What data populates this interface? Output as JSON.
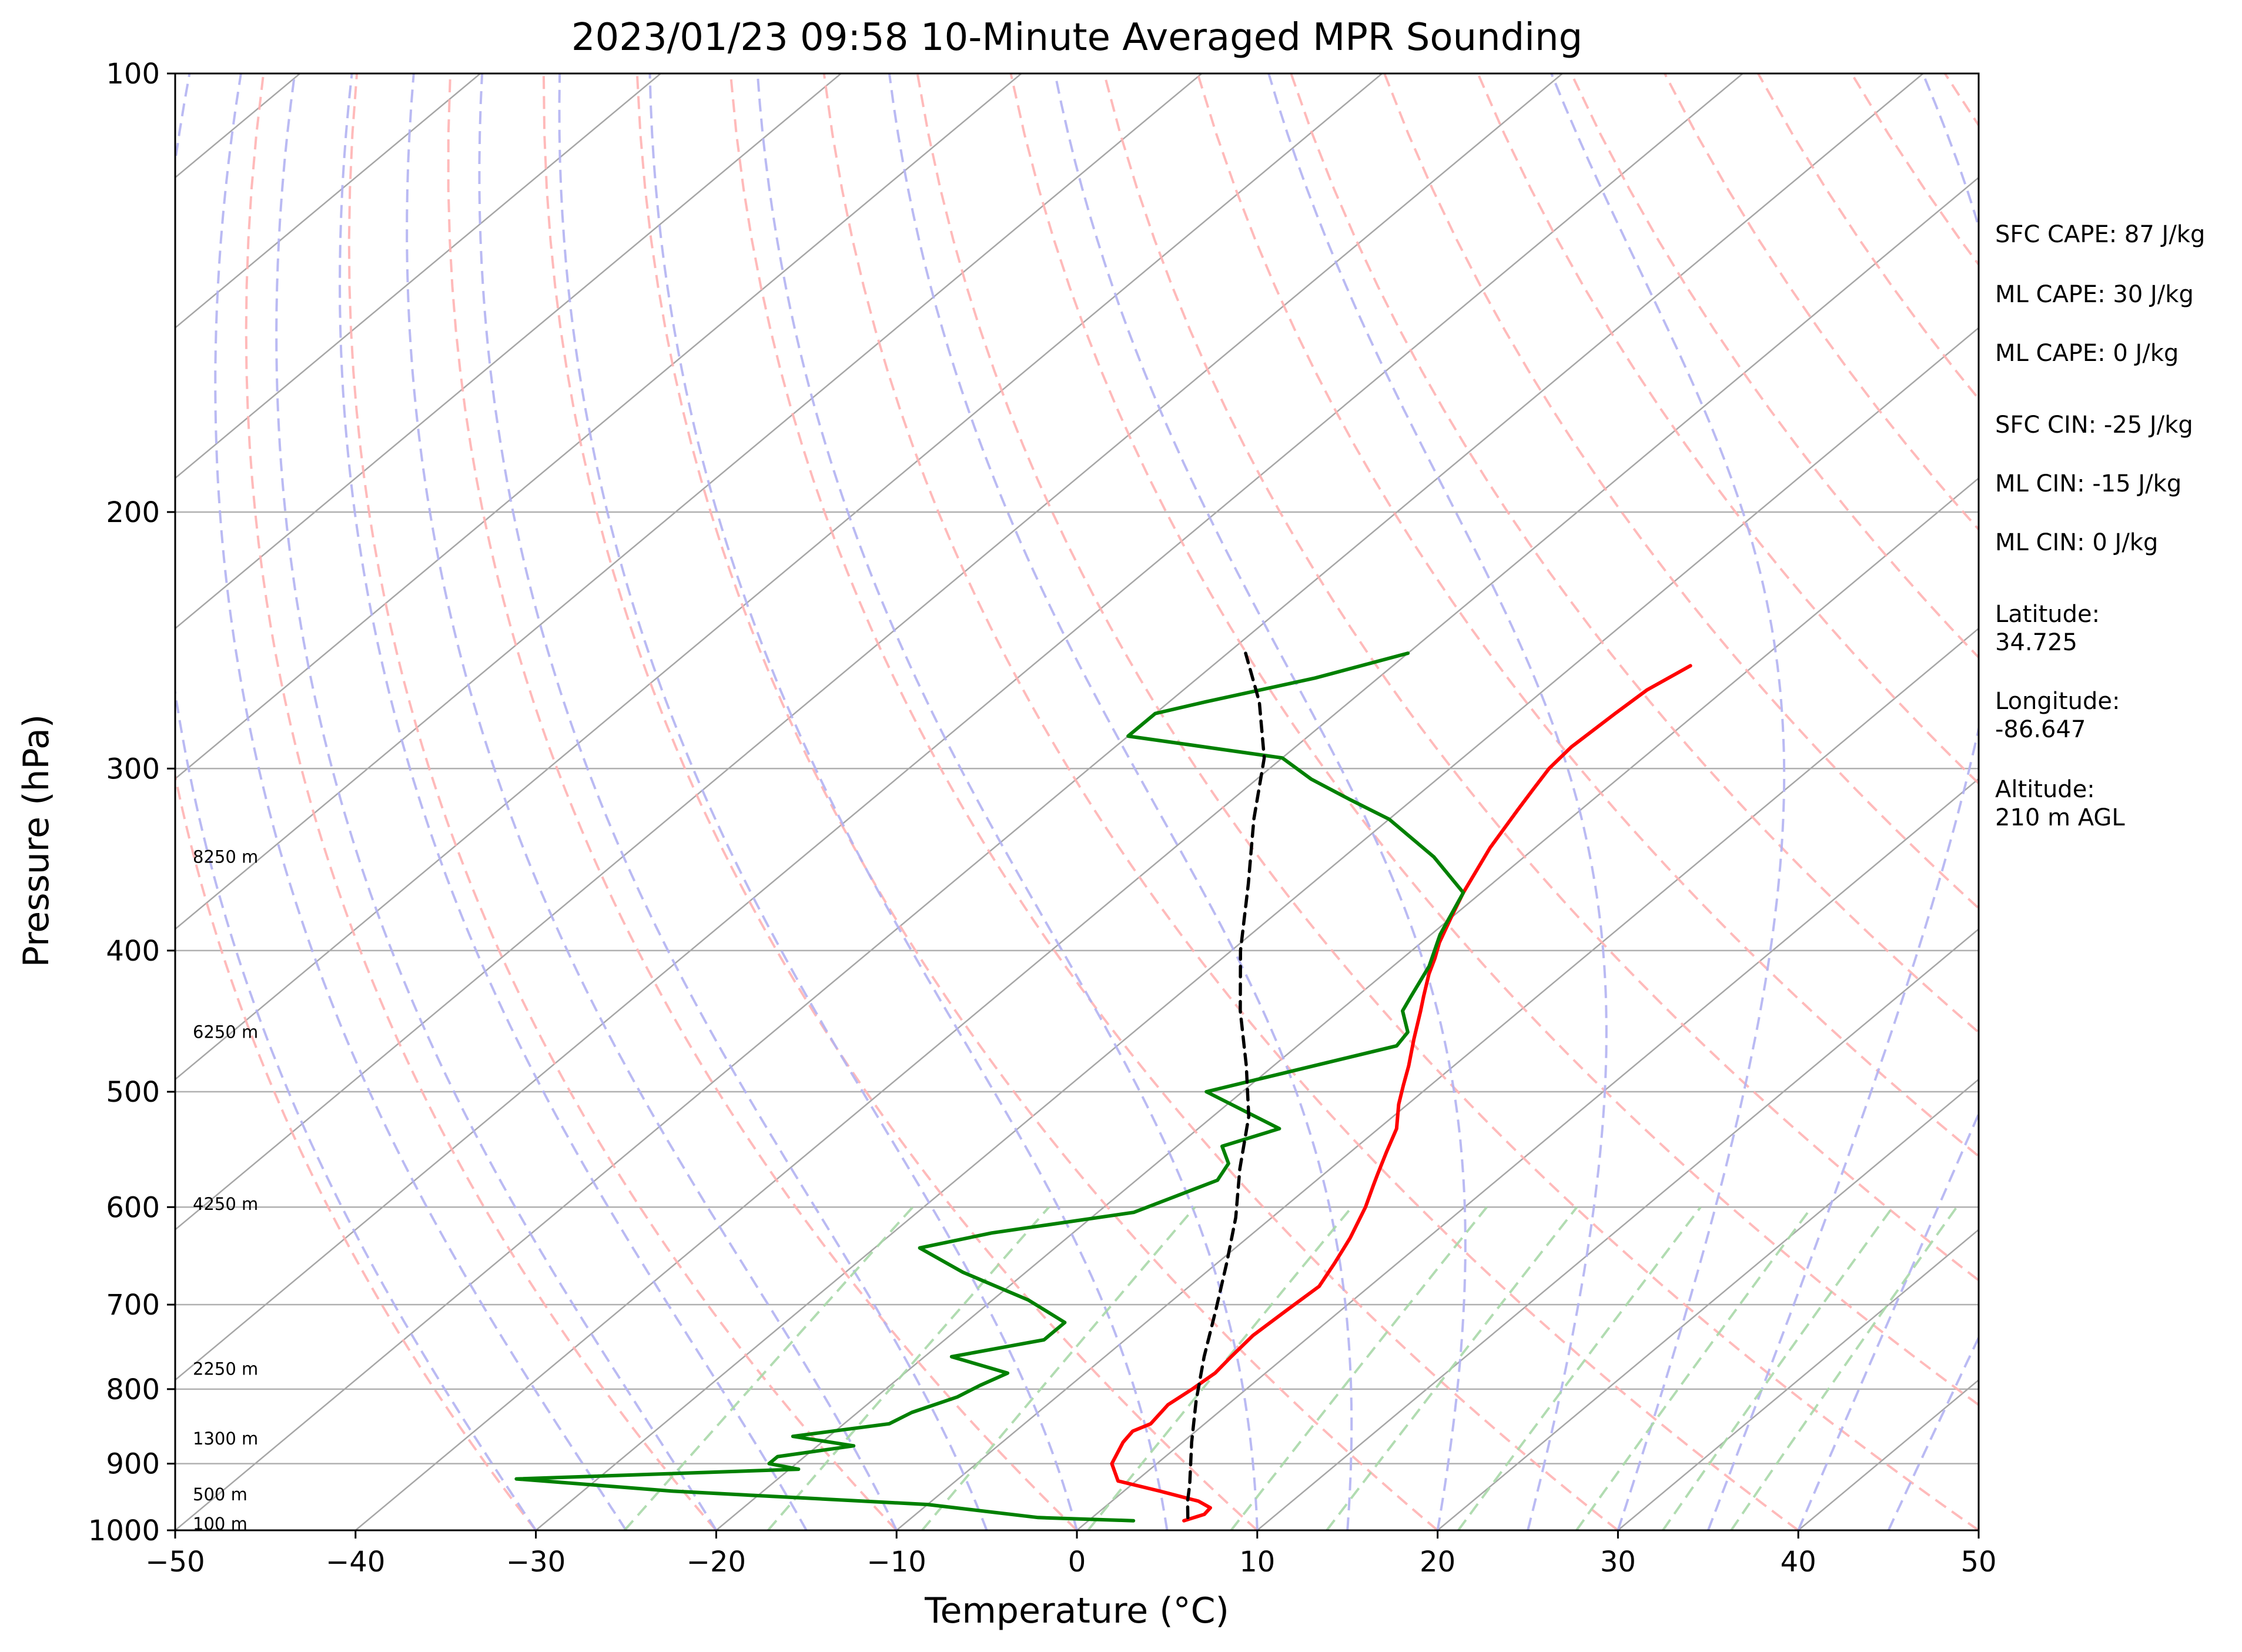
{
  "chart_data": {
    "type": "line",
    "title": "2023/01/23 09:58 10-Minute Averaged MPR Sounding",
    "xlabel": "Temperature (°C)",
    "ylabel": "Pressure (hPa)",
    "xlim": [
      -50,
      50
    ],
    "ylim": [
      1000,
      100
    ],
    "y_scale": "log",
    "x_ticks": [
      -50,
      -40,
      -30,
      -20,
      -10,
      0,
      10,
      20,
      30,
      40,
      50
    ],
    "x_tick_labels": [
      "−50",
      "−40",
      "−30",
      "−20",
      "−10",
      "0",
      "10",
      "20",
      "30",
      "40",
      "50"
    ],
    "y_ticks": [
      1000,
      900,
      800,
      700,
      600,
      500,
      400,
      300,
      200,
      100
    ],
    "y_tick_labels": [
      "1000",
      "900",
      "800",
      "700",
      "600",
      "500",
      "400",
      "300",
      "200",
      "100"
    ],
    "grid": true,
    "colors": {
      "temperature": "#ff0000",
      "dewpoint": "#008000",
      "parcel": "#000000",
      "isotherms": "#a6a6a6",
      "dry_adiabats": "#ffb3b3",
      "moist_adiabats": "#b3b3f2",
      "mixing_ratio": "#a8d8a8",
      "pressure_grid": "#b0b0b0"
    },
    "series": [
      {
        "role": "temperature",
        "points": [
          [
            5.3,
            985
          ],
          [
            6.0,
            975
          ],
          [
            5.9,
            965
          ],
          [
            4.8,
            955
          ],
          [
            2.0,
            940
          ],
          [
            -1.0,
            925
          ],
          [
            -2.5,
            900
          ],
          [
            -3.3,
            870
          ],
          [
            -3.5,
            855
          ],
          [
            -3.0,
            845
          ],
          [
            -3.3,
            820
          ],
          [
            -3.0,
            800
          ],
          [
            -2.8,
            780
          ],
          [
            -3.0,
            760
          ],
          [
            -3.2,
            735
          ],
          [
            -3.0,
            705
          ],
          [
            -2.8,
            680
          ],
          [
            -3.5,
            655
          ],
          [
            -4.3,
            630
          ],
          [
            -5.5,
            600
          ],
          [
            -6.5,
            580
          ],
          [
            -7.0,
            570
          ],
          [
            -8.0,
            550
          ],
          [
            -9.0,
            530
          ],
          [
            -10.5,
            510
          ],
          [
            -11.5,
            495
          ],
          [
            -12.5,
            480
          ],
          [
            -14.0,
            460
          ],
          [
            -15.5,
            440
          ],
          [
            -16.3,
            430
          ],
          [
            -17.5,
            415
          ],
          [
            -18.2,
            405
          ],
          [
            -19.0,
            395
          ],
          [
            -20.0,
            380
          ],
          [
            -21.0,
            365
          ],
          [
            -22.5,
            340
          ],
          [
            -23.5,
            320
          ],
          [
            -24.0,
            310
          ],
          [
            -24.5,
            300
          ],
          [
            -24.7,
            290
          ],
          [
            -24.5,
            275
          ],
          [
            -24.3,
            265
          ],
          [
            -23.5,
            255
          ]
        ]
      },
      {
        "role": "dewpoint",
        "points": [
          [
            2.5,
            985
          ],
          [
            -3.0,
            980
          ],
          [
            -10.0,
            960
          ],
          [
            -25.0,
            940
          ],
          [
            -34.5,
            922
          ],
          [
            -19.5,
            908
          ],
          [
            -21.5,
            900
          ],
          [
            -21.5,
            890
          ],
          [
            -18.0,
            875
          ],
          [
            -22.0,
            862
          ],
          [
            -17.5,
            845
          ],
          [
            -17.0,
            830
          ],
          [
            -15.5,
            810
          ],
          [
            -15.0,
            795
          ],
          [
            -14.3,
            780
          ],
          [
            -18.5,
            760
          ],
          [
            -14.5,
            740
          ],
          [
            -14.5,
            720
          ],
          [
            -18.0,
            695
          ],
          [
            -23.5,
            665
          ],
          [
            -27.5,
            640
          ],
          [
            -24.5,
            625
          ],
          [
            -18.0,
            605
          ],
          [
            -15.5,
            575
          ],
          [
            -16.0,
            560
          ],
          [
            -17.5,
            545
          ],
          [
            -15.5,
            530
          ],
          [
            -22.0,
            500
          ],
          [
            -14.5,
            465
          ],
          [
            -14.8,
            455
          ],
          [
            -16.5,
            440
          ],
          [
            -17.0,
            430
          ],
          [
            -18.0,
            410
          ],
          [
            -19.5,
            390
          ],
          [
            -21.0,
            365
          ],
          [
            -25.0,
            345
          ],
          [
            -30.0,
            325
          ],
          [
            -33.5,
            315
          ],
          [
            -37.0,
            305
          ],
          [
            -40.0,
            295
          ],
          [
            -50.0,
            285
          ],
          [
            -50.0,
            275
          ],
          [
            -48.0,
            270
          ],
          [
            -43.5,
            260
          ],
          [
            -40.0,
            250
          ]
        ]
      },
      {
        "role": "parcel",
        "points": [
          [
            5.3,
            980
          ],
          [
            4.2,
            955
          ],
          [
            3.2,
            930
          ],
          [
            0.5,
            870
          ],
          [
            -2.0,
            815
          ],
          [
            -4.5,
            760
          ],
          [
            -7.0,
            705
          ],
          [
            -9.5,
            655
          ],
          [
            -12.0,
            610
          ],
          [
            -15.0,
            565
          ],
          [
            -18.0,
            520
          ],
          [
            -21.5,
            480
          ],
          [
            -25.5,
            440
          ],
          [
            -29.5,
            400
          ],
          [
            -33.5,
            360
          ],
          [
            -37.5,
            325
          ],
          [
            -41.0,
            295
          ],
          [
            -45.0,
            270
          ],
          [
            -49.0,
            250
          ]
        ]
      }
    ],
    "height_labels": [
      {
        "text": "100 m",
        "p": 990
      },
      {
        "text": "500 m",
        "p": 945
      },
      {
        "text": "1300 m",
        "p": 865
      },
      {
        "text": "2250 m",
        "p": 775
      },
      {
        "text": "4250 m",
        "p": 597
      },
      {
        "text": "6250 m",
        "p": 455
      },
      {
        "text": "8250 m",
        "p": 345
      }
    ],
    "annotations": [
      "SFC CAPE: 87 J/kg",
      "ML CAPE: 30 J/kg",
      "ML CAPE: 0 J/kg",
      "SFC CIN: -25 J/kg",
      "ML CIN: -15 J/kg",
      "ML CIN: 0 J/kg",
      "Latitude:",
      "34.725",
      "Longitude:",
      "-86.647",
      "Altitude:",
      "210 m AGL"
    ]
  }
}
